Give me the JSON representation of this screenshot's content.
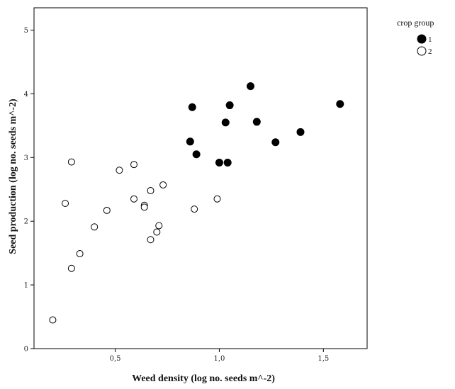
{
  "chart_data": {
    "type": "scatter",
    "title": "",
    "xlabel": "Weed density (log no. seeds m^-2)",
    "ylabel": "Seed production (log no. seeds m^-2)",
    "xlim": [
      0.11,
      1.71
    ],
    "ylim": [
      0,
      5.35
    ],
    "x_ticks": [
      0.5,
      1.0,
      1.5
    ],
    "x_tick_labels": [
      "0,5",
      "1,0",
      "1,5"
    ],
    "y_ticks": [
      0,
      1,
      2,
      3,
      4,
      5
    ],
    "y_tick_labels": [
      "0",
      "1",
      "2",
      "3",
      "4",
      "5"
    ],
    "grid": false,
    "legend": {
      "title": "crop group",
      "placement": "top-right, outside plot"
    },
    "series": [
      {
        "name": "1",
        "marker": "filled-circle",
        "color": "#000000",
        "points": [
          [
            0.87,
            3.79
          ],
          [
            0.86,
            3.25
          ],
          [
            0.89,
            3.05
          ],
          [
            1.0,
            2.92
          ],
          [
            1.04,
            2.92
          ],
          [
            1.03,
            3.55
          ],
          [
            1.05,
            3.82
          ],
          [
            1.15,
            4.12
          ],
          [
            1.18,
            3.56
          ],
          [
            1.27,
            3.24
          ],
          [
            1.39,
            3.4
          ],
          [
            1.58,
            3.84
          ]
        ]
      },
      {
        "name": "2",
        "marker": "open-circle",
        "color": "#000000",
        "points": [
          [
            0.2,
            0.45
          ],
          [
            0.26,
            2.28
          ],
          [
            0.29,
            2.93
          ],
          [
            0.29,
            1.26
          ],
          [
            0.33,
            1.49
          ],
          [
            0.4,
            1.91
          ],
          [
            0.46,
            2.17
          ],
          [
            0.52,
            2.8
          ],
          [
            0.59,
            2.89
          ],
          [
            0.59,
            2.35
          ],
          [
            0.64,
            2.25
          ],
          [
            0.64,
            2.22
          ],
          [
            0.67,
            2.48
          ],
          [
            0.67,
            1.71
          ],
          [
            0.7,
            1.83
          ],
          [
            0.71,
            1.93
          ],
          [
            0.73,
            2.57
          ],
          [
            0.88,
            2.19
          ],
          [
            0.99,
            2.35
          ]
        ]
      }
    ]
  }
}
